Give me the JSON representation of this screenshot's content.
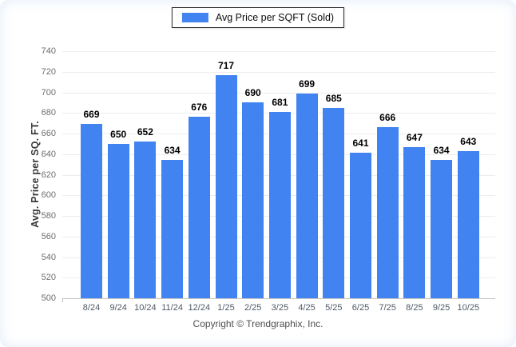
{
  "chart_data": {
    "type": "bar",
    "title": "",
    "legend": [
      "Avg Price per SQFT (Sold)"
    ],
    "legend_position": "top-center",
    "categories": [
      "8/24",
      "9/24",
      "10/24",
      "11/24",
      "12/24",
      "1/25",
      "2/25",
      "3/25",
      "4/25",
      "5/25",
      "6/25",
      "7/25",
      "8/25",
      "9/25",
      "10/25"
    ],
    "values": [
      669,
      650,
      652,
      634,
      676,
      717,
      690,
      681,
      699,
      685,
      641,
      666,
      647,
      634,
      643
    ],
    "xlabel": "",
    "ylabel": "Avg. Price per SQ. FT.",
    "ylim": [
      500,
      740
    ],
    "yticks": [
      500,
      520,
      540,
      560,
      580,
      600,
      620,
      640,
      660,
      680,
      700,
      720,
      740
    ],
    "grid": true,
    "value_labels": true,
    "bar_color": "#4183f0",
    "value_label_color": "#000000"
  },
  "footer": {
    "copyright": "Copyright © Trendgraphix, Inc."
  }
}
